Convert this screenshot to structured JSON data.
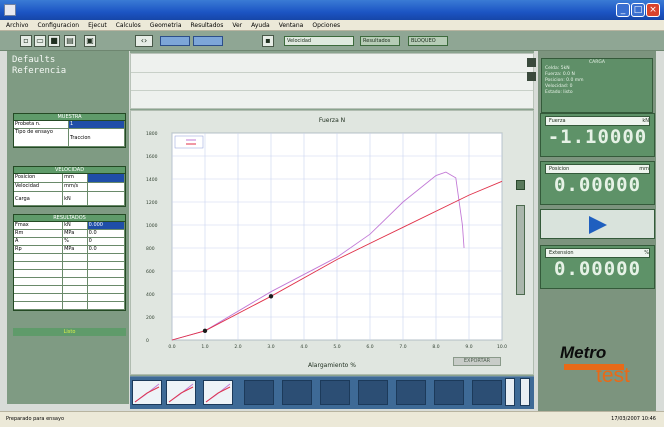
{
  "window": {
    "title": "",
    "controls": [
      "_",
      "□",
      "×"
    ]
  },
  "menu": [
    "Archivo",
    "Configuracion",
    "Ejecut",
    "Calculos",
    "Geometria",
    "Resultados",
    "Ver",
    "Ayuda",
    "Ventana",
    "Opciones"
  ],
  "toolbar": {
    "mode_field": "Velocidad",
    "field_a": "Resultados",
    "field_b": "BLOQUEO"
  },
  "specimen": {
    "name": "Defaults",
    "reference": "Referencia"
  },
  "params_table": {
    "header": "MUESTRA",
    "rows": [
      [
        "Probeta n.",
        "1"
      ],
      [
        "Tipo de ensayo",
        "Traccion"
      ]
    ]
  },
  "speed_table": {
    "header": "VELOCIDAD",
    "rows": [
      [
        "Posicion",
        "mm",
        ""
      ],
      [
        "Velocidad",
        "mm/s",
        ""
      ],
      [
        "Carga",
        "kN",
        ""
      ]
    ]
  },
  "results_table": {
    "header": "RESULTADOS",
    "rows": [
      [
        "Fmax",
        "kN",
        "0.000"
      ],
      [
        "Rm",
        "MPa",
        "0.0"
      ],
      [
        "A",
        "%",
        "0"
      ],
      [
        "Rp",
        "MPa",
        "0.0"
      ],
      [
        "",
        "",
        ""
      ],
      [
        "",
        "",
        ""
      ],
      [
        "",
        "",
        ""
      ],
      [
        "",
        "",
        ""
      ],
      [
        "",
        "",
        ""
      ],
      [
        "",
        "",
        ""
      ],
      [
        "",
        "",
        ""
      ]
    ],
    "footer": "Listo"
  },
  "chart_data": {
    "type": "line",
    "title": "Fuerza N",
    "xlabel": "Alargamiento %",
    "ylabel": "",
    "grid": true,
    "legend_position": "top-left",
    "legend": [
      "",
      ""
    ],
    "x_ticks": [
      "0.0",
      "1.0",
      "2.0",
      "3.0",
      "4.0",
      "5.0",
      "6.0",
      "7.0",
      "8.0",
      "9.0",
      "10.0"
    ],
    "y_ticks": [
      "0",
      "200",
      "400",
      "600",
      "800",
      "1000",
      "1200",
      "1400",
      "1600",
      "1800"
    ],
    "xlim": [
      0,
      10
    ],
    "ylim": [
      0,
      1800
    ],
    "series": [
      {
        "name": "",
        "color": "#c27ad6",
        "x": [
          0,
          1,
          3,
          5,
          6,
          7,
          8,
          8.3,
          8.6,
          8.8,
          8.85
        ],
        "y": [
          0,
          80,
          420,
          720,
          920,
          1200,
          1430,
          1460,
          1410,
          1000,
          800
        ]
      },
      {
        "name": "",
        "color": "#e0324a",
        "x": [
          0,
          1,
          3,
          5,
          7,
          9,
          10
        ],
        "y": [
          0,
          80,
          380,
          700,
          980,
          1260,
          1380
        ]
      }
    ],
    "markers": [
      {
        "x": 1,
        "y": 80
      },
      {
        "x": 3,
        "y": 380
      }
    ]
  },
  "export_label": "EXPORTAR",
  "info_panel": {
    "lines": [
      "CARGA",
      "Celda: 5kN",
      "Fuerza: 0.0 N",
      "Posicion: 0.0 mm",
      "Velocidad: 0",
      "Estado: listo"
    ]
  },
  "panels": {
    "force": {
      "label": "Fuerza",
      "unit": "kN",
      "value": "-1.10000"
    },
    "position": {
      "label": "Posicion",
      "unit": "mm",
      "value": "0.00000"
    },
    "extension": {
      "label": "Extension",
      "unit": "%",
      "value": "0.00000"
    }
  },
  "logo": {
    "line1": "Metro",
    "line2": "test"
  },
  "status": {
    "left": "Preparado para ensayo",
    "right": "17/03/2007 10:46"
  }
}
